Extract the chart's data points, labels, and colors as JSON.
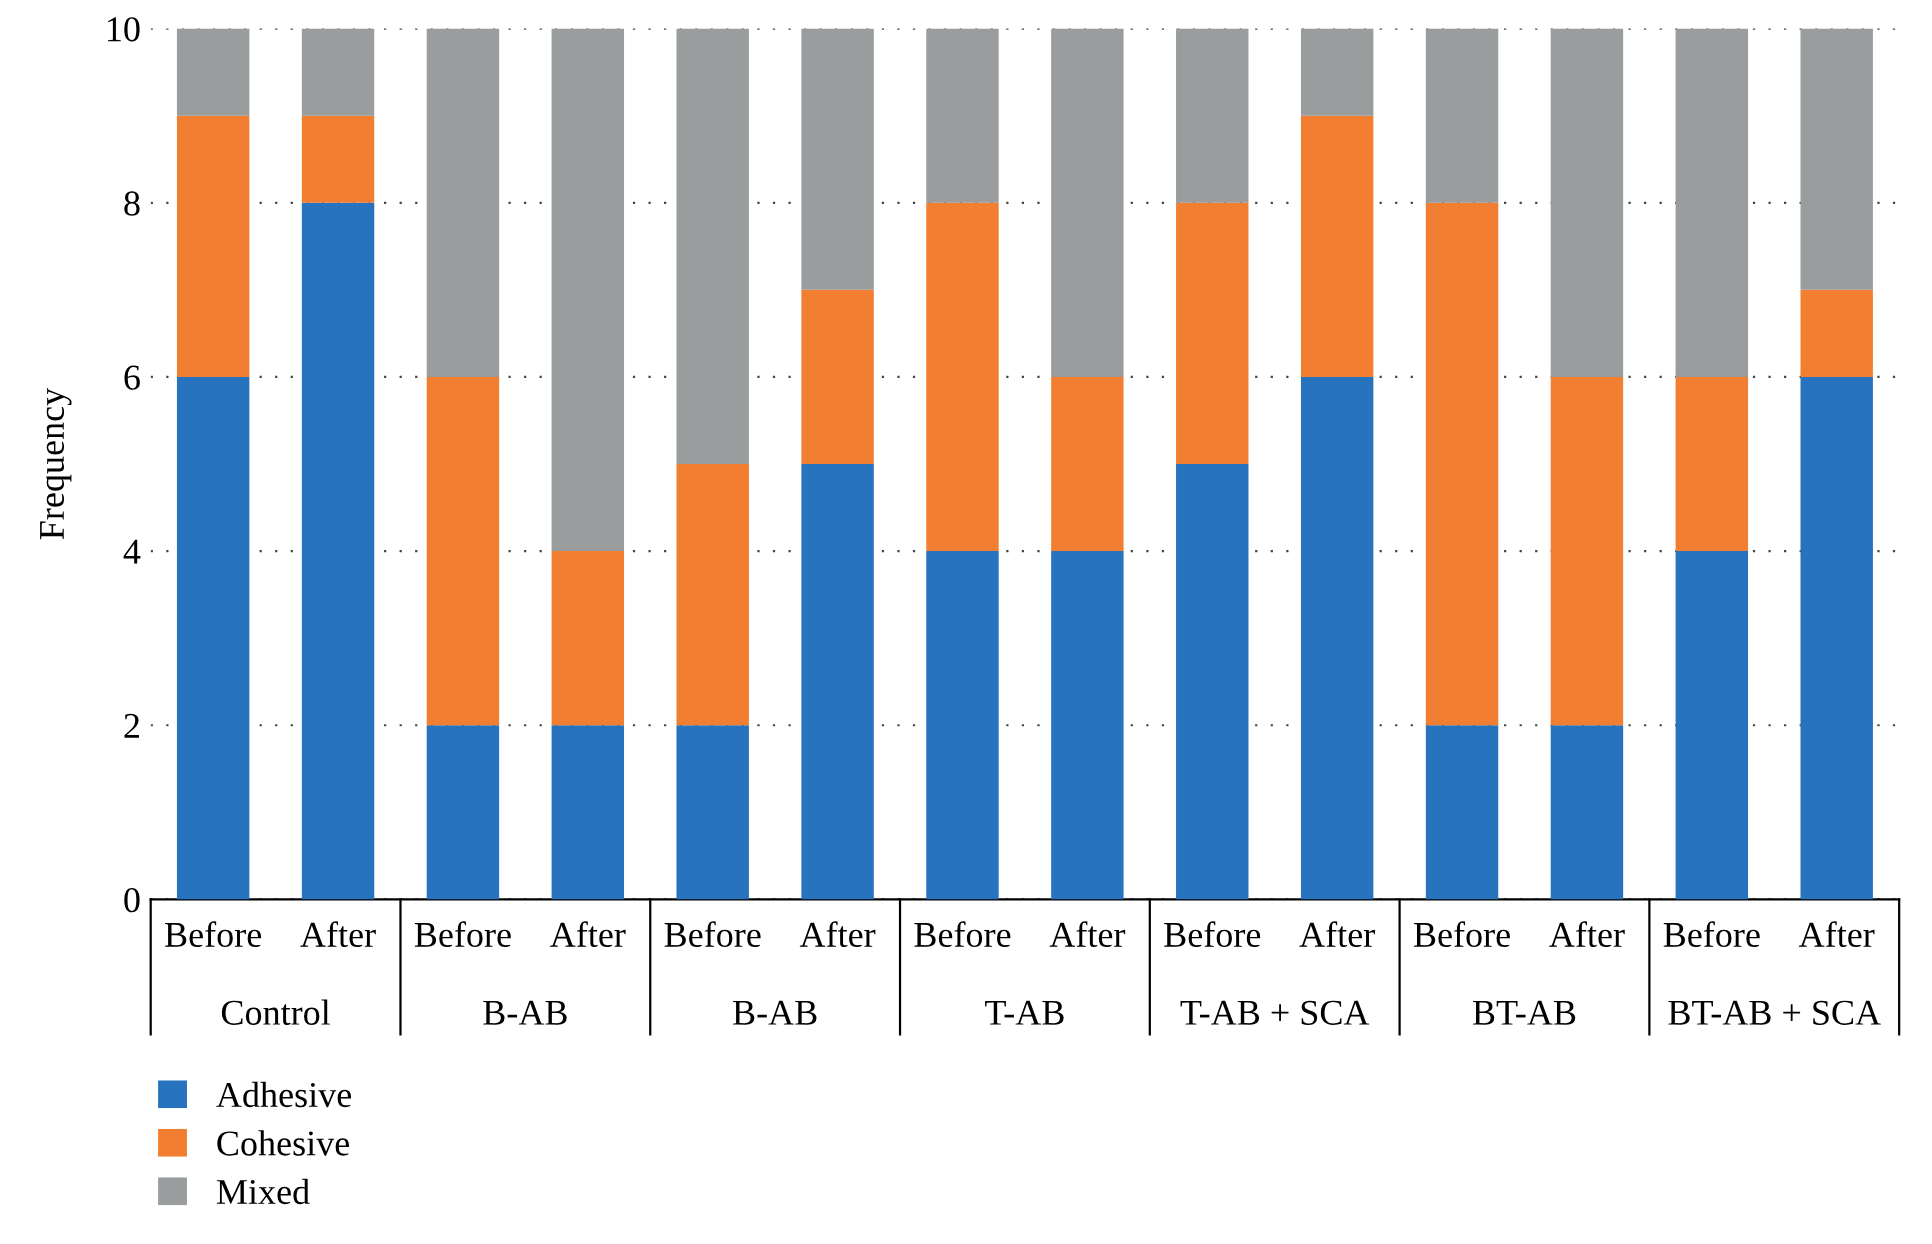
{
  "chart_data": {
    "type": "bar",
    "stacked": true,
    "ylabel": "Frequency",
    "categories": [
      "Before",
      "After",
      "Before",
      "After",
      "Before",
      "After",
      "Before",
      "After",
      "Before",
      "After",
      "Before",
      "After",
      "Before",
      "After"
    ],
    "annotations": [
      "Control",
      "B-AB",
      "B-AB",
      "T-AB",
      "T-AB + SCA",
      "BT-AB",
      "BT-AB + SCA"
    ],
    "series": [
      {
        "name": "Adhesive",
        "color": "#2773be",
        "values": [
          6,
          8,
          2,
          2,
          2,
          5,
          4,
          4,
          5,
          6,
          2,
          2,
          4,
          6
        ]
      },
      {
        "name": "Cohesive",
        "color": "#f27f31",
        "values": [
          3,
          1,
          4,
          2,
          3,
          2,
          4,
          2,
          3,
          3,
          6,
          4,
          2,
          1
        ]
      },
      {
        "name": "Mixed",
        "color": "#9a9d9e",
        "values": [
          1,
          1,
          4,
          6,
          5,
          3,
          2,
          4,
          2,
          1,
          2,
          4,
          4,
          3
        ]
      }
    ],
    "ylim": [
      0,
      10
    ],
    "yticks": [
      0,
      2,
      4,
      6,
      8,
      10
    ],
    "grid": "y",
    "legend": "bottom left"
  }
}
